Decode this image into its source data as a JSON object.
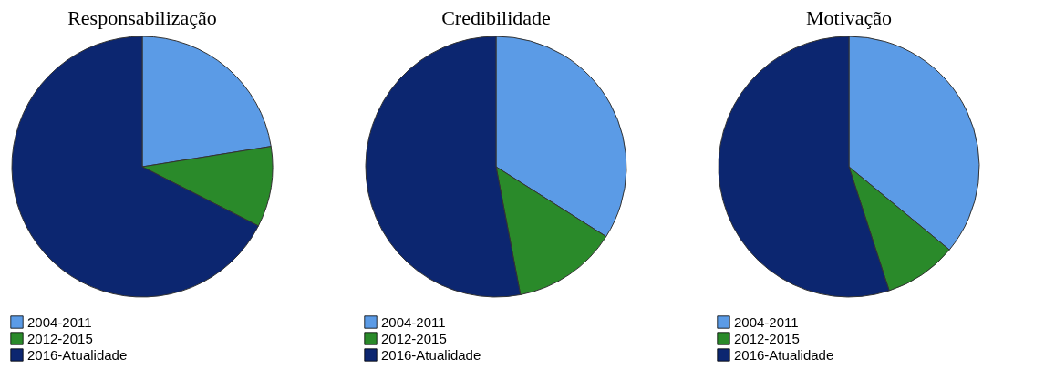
{
  "chart_data": [
    {
      "type": "pie",
      "title": "Responsabilização",
      "categories": [
        "2004-2011",
        "2012-2015",
        "2016-Atualidade"
      ],
      "values": [
        22.5,
        10,
        67.5
      ],
      "colors": [
        "#5b9be6",
        "#2a8a2a",
        "#0c2670"
      ],
      "legend": "bottom"
    },
    {
      "type": "pie",
      "title": "Credibilidade",
      "categories": [
        "2004-2011",
        "2012-2015",
        "2016-Atualidade"
      ],
      "values": [
        34,
        13,
        53
      ],
      "colors": [
        "#5b9be6",
        "#2a8a2a",
        "#0c2670"
      ],
      "legend": "bottom"
    },
    {
      "type": "pie",
      "title": "Motivação",
      "categories": [
        "2004-2011",
        "2012-2015",
        "2016-Atualidade"
      ],
      "values": [
        36,
        9,
        55
      ],
      "colors": [
        "#5b9be6",
        "#2a8a2a",
        "#0c2670"
      ],
      "legend": "bottom"
    }
  ]
}
